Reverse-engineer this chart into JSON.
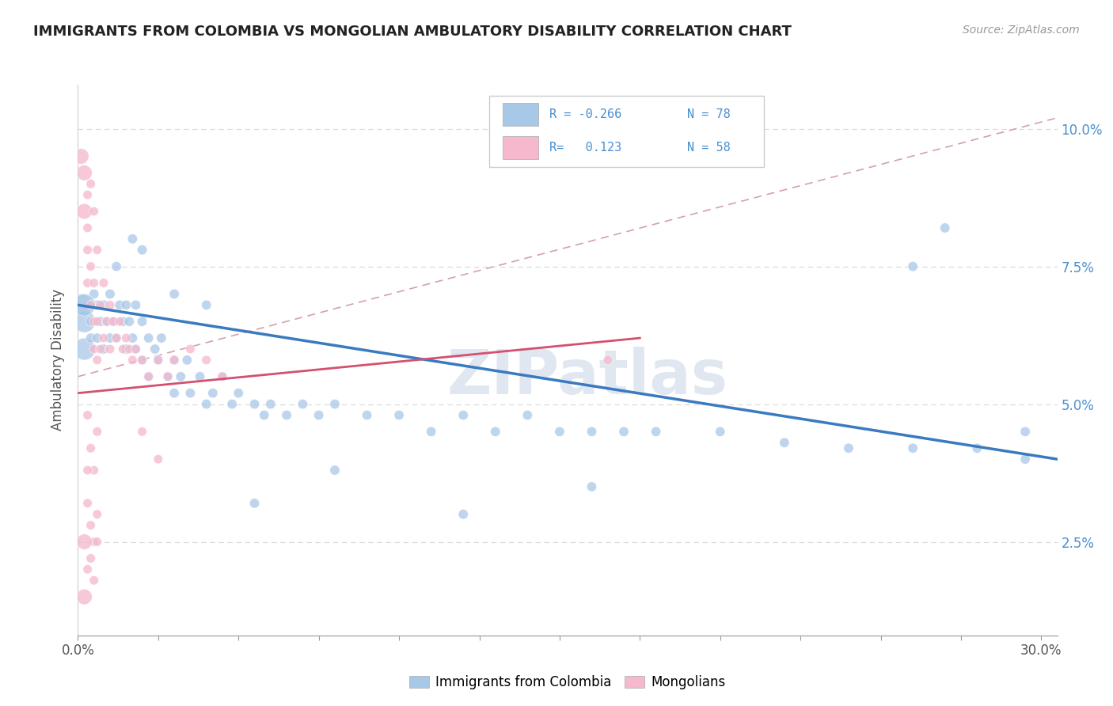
{
  "title": "IMMIGRANTS FROM COLOMBIA VS MONGOLIAN AMBULATORY DISABILITY CORRELATION CHART",
  "source": "Source: ZipAtlas.com",
  "ylabel": "Ambulatory Disability",
  "color_blue": "#a8c8e8",
  "color_pink": "#f5b8cc",
  "color_blue_line": "#3a7abf",
  "color_pink_line": "#d45070",
  "color_dashed": "#d0b0c0",
  "watermark": "ZIPatlas",
  "xlim": [
    0.0,
    0.305
  ],
  "ylim": [
    0.008,
    0.108
  ],
  "ytick_vals": [
    0.025,
    0.05,
    0.075,
    0.1
  ],
  "ytick_labels": [
    "2.5%",
    "5.0%",
    "7.5%",
    "10.0%"
  ],
  "blue_line_x": [
    0.0,
    0.305
  ],
  "blue_line_y": [
    0.068,
    0.04
  ],
  "pink_line_x": [
    0.0,
    0.175
  ],
  "pink_line_y": [
    0.052,
    0.062
  ],
  "dashed_line_x": [
    0.0,
    0.305
  ],
  "dashed_line_y": [
    0.055,
    0.102
  ],
  "blue_scatter": [
    [
      0.001,
      0.068
    ],
    [
      0.002,
      0.065
    ],
    [
      0.002,
      0.06
    ],
    [
      0.003,
      0.068
    ],
    [
      0.004,
      0.065
    ],
    [
      0.004,
      0.062
    ],
    [
      0.005,
      0.07
    ],
    [
      0.006,
      0.068
    ],
    [
      0.006,
      0.062
    ],
    [
      0.007,
      0.065
    ],
    [
      0.008,
      0.068
    ],
    [
      0.008,
      0.06
    ],
    [
      0.009,
      0.065
    ],
    [
      0.01,
      0.07
    ],
    [
      0.01,
      0.062
    ],
    [
      0.011,
      0.065
    ],
    [
      0.012,
      0.075
    ],
    [
      0.012,
      0.062
    ],
    [
      0.013,
      0.068
    ],
    [
      0.014,
      0.065
    ],
    [
      0.015,
      0.068
    ],
    [
      0.015,
      0.06
    ],
    [
      0.016,
      0.065
    ],
    [
      0.017,
      0.062
    ],
    [
      0.018,
      0.068
    ],
    [
      0.018,
      0.06
    ],
    [
      0.02,
      0.065
    ],
    [
      0.02,
      0.058
    ],
    [
      0.022,
      0.062
    ],
    [
      0.022,
      0.055
    ],
    [
      0.024,
      0.06
    ],
    [
      0.025,
      0.058
    ],
    [
      0.026,
      0.062
    ],
    [
      0.028,
      0.055
    ],
    [
      0.03,
      0.058
    ],
    [
      0.03,
      0.052
    ],
    [
      0.032,
      0.055
    ],
    [
      0.034,
      0.058
    ],
    [
      0.035,
      0.052
    ],
    [
      0.038,
      0.055
    ],
    [
      0.04,
      0.05
    ],
    [
      0.042,
      0.052
    ],
    [
      0.045,
      0.055
    ],
    [
      0.048,
      0.05
    ],
    [
      0.05,
      0.052
    ],
    [
      0.055,
      0.05
    ],
    [
      0.058,
      0.048
    ],
    [
      0.06,
      0.05
    ],
    [
      0.065,
      0.048
    ],
    [
      0.07,
      0.05
    ],
    [
      0.075,
      0.048
    ],
    [
      0.08,
      0.05
    ],
    [
      0.09,
      0.048
    ],
    [
      0.1,
      0.048
    ],
    [
      0.11,
      0.045
    ],
    [
      0.12,
      0.048
    ],
    [
      0.13,
      0.045
    ],
    [
      0.14,
      0.048
    ],
    [
      0.15,
      0.045
    ],
    [
      0.16,
      0.045
    ],
    [
      0.17,
      0.045
    ],
    [
      0.18,
      0.045
    ],
    [
      0.2,
      0.045
    ],
    [
      0.22,
      0.043
    ],
    [
      0.24,
      0.042
    ],
    [
      0.26,
      0.042
    ],
    [
      0.28,
      0.042
    ],
    [
      0.295,
      0.04
    ],
    [
      0.017,
      0.08
    ],
    [
      0.02,
      0.078
    ],
    [
      0.27,
      0.082
    ],
    [
      0.26,
      0.075
    ],
    [
      0.03,
      0.07
    ],
    [
      0.04,
      0.068
    ],
    [
      0.055,
      0.032
    ],
    [
      0.08,
      0.038
    ],
    [
      0.12,
      0.03
    ],
    [
      0.16,
      0.035
    ],
    [
      0.295,
      0.045
    ],
    [
      0.002,
      0.068
    ]
  ],
  "pink_scatter": [
    [
      0.001,
      0.095
    ],
    [
      0.002,
      0.092
    ],
    [
      0.002,
      0.085
    ],
    [
      0.003,
      0.088
    ],
    [
      0.003,
      0.082
    ],
    [
      0.003,
      0.078
    ],
    [
      0.003,
      0.072
    ],
    [
      0.004,
      0.09
    ],
    [
      0.004,
      0.075
    ],
    [
      0.004,
      0.068
    ],
    [
      0.005,
      0.085
    ],
    [
      0.005,
      0.072
    ],
    [
      0.005,
      0.065
    ],
    [
      0.005,
      0.06
    ],
    [
      0.006,
      0.078
    ],
    [
      0.006,
      0.065
    ],
    [
      0.006,
      0.058
    ],
    [
      0.007,
      0.068
    ],
    [
      0.007,
      0.06
    ],
    [
      0.008,
      0.072
    ],
    [
      0.008,
      0.062
    ],
    [
      0.009,
      0.065
    ],
    [
      0.01,
      0.068
    ],
    [
      0.01,
      0.06
    ],
    [
      0.011,
      0.065
    ],
    [
      0.012,
      0.062
    ],
    [
      0.013,
      0.065
    ],
    [
      0.014,
      0.06
    ],
    [
      0.015,
      0.062
    ],
    [
      0.016,
      0.06
    ],
    [
      0.017,
      0.058
    ],
    [
      0.018,
      0.06
    ],
    [
      0.02,
      0.058
    ],
    [
      0.022,
      0.055
    ],
    [
      0.025,
      0.058
    ],
    [
      0.028,
      0.055
    ],
    [
      0.03,
      0.058
    ],
    [
      0.035,
      0.06
    ],
    [
      0.04,
      0.058
    ],
    [
      0.045,
      0.055
    ],
    [
      0.003,
      0.048
    ],
    [
      0.004,
      0.042
    ],
    [
      0.005,
      0.038
    ],
    [
      0.006,
      0.045
    ],
    [
      0.005,
      0.025
    ],
    [
      0.006,
      0.03
    ],
    [
      0.005,
      0.018
    ],
    [
      0.004,
      0.022
    ],
    [
      0.003,
      0.032
    ],
    [
      0.003,
      0.038
    ],
    [
      0.002,
      0.025
    ],
    [
      0.002,
      0.015
    ],
    [
      0.003,
      0.02
    ],
    [
      0.004,
      0.028
    ],
    [
      0.165,
      0.058
    ],
    [
      0.02,
      0.045
    ],
    [
      0.025,
      0.04
    ],
    [
      0.006,
      0.025
    ]
  ]
}
